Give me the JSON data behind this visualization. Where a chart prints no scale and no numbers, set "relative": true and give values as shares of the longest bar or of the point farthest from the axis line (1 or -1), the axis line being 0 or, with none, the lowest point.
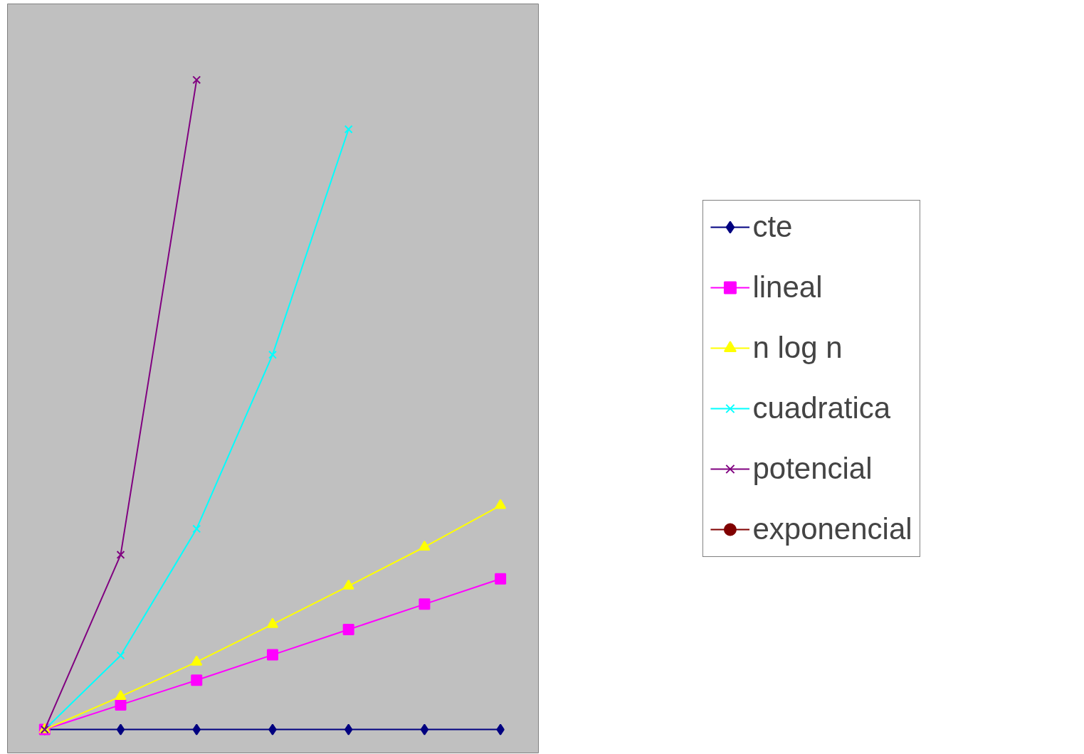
{
  "chart_data": {
    "type": "line",
    "relative": true,
    "categories": [
      null,
      null,
      null,
      null,
      null,
      null,
      null
    ],
    "legend": "right",
    "series": [
      {
        "name": "cte",
        "color": "#000080",
        "marker": "diamond",
        "values": [
          0,
          0,
          0,
          0,
          0,
          0,
          0
        ]
      },
      {
        "name": "lineal",
        "color": "#ff00ff",
        "marker": "square",
        "values": [
          0,
          0.038,
          0.076,
          0.115,
          0.154,
          0.193,
          0.232
        ]
      },
      {
        "name": "n log n",
        "color": "#ffff00",
        "marker": "triangle",
        "values": [
          0,
          0.051,
          0.104,
          0.162,
          0.221,
          0.281,
          0.345
        ]
      },
      {
        "name": "cuadratica",
        "color": "#00ffff",
        "marker": "cross",
        "values": [
          0,
          0.114,
          0.309,
          0.577,
          0.924,
          null,
          null
        ]
      },
      {
        "name": "potencial",
        "color": "#800080",
        "marker": "cross",
        "values": [
          0,
          0.269,
          1,
          null,
          null,
          null,
          null
        ]
      },
      {
        "name": "exponencial",
        "color": "#800000",
        "marker": "circle",
        "values": [
          null,
          null,
          null,
          null,
          null,
          null,
          null
        ]
      }
    ]
  }
}
